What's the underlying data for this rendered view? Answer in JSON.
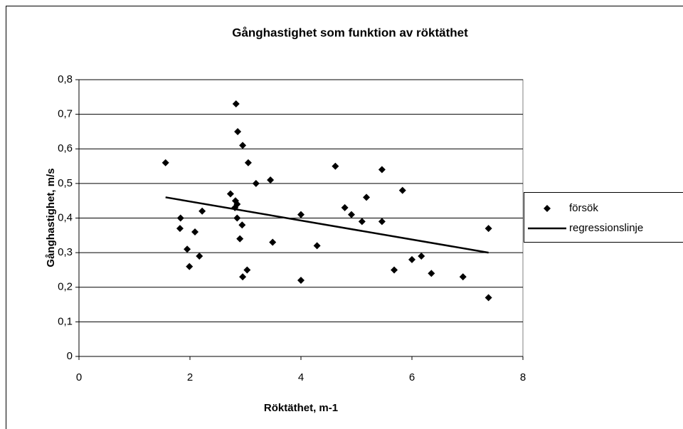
{
  "chart_data": {
    "type": "scatter",
    "title": "Gånghastighet som funktion av röktäthet",
    "x_label": "Röktäthet, m-1",
    "y_label": "Gånghastighet, m/s",
    "xlim": [
      0,
      8
    ],
    "xticks": [
      0,
      2,
      4,
      6,
      8
    ],
    "ylim": [
      0,
      0.8
    ],
    "yticks": [
      0,
      {
        "value": 0.1,
        "label": "0,1"
      },
      {
        "value": 0.2,
        "label": "0,2"
      },
      {
        "value": 0.3,
        "label": "0,3"
      },
      {
        "value": 0.4,
        "label": "0,4"
      },
      {
        "value": 0.5,
        "label": "0,5"
      },
      {
        "value": 0.6,
        "label": "0,6"
      },
      {
        "value": 0.7,
        "label": "0,7"
      },
      {
        "value": 0.8,
        "label": "0,8"
      }
    ],
    "grid": true,
    "legend": "right",
    "series": [
      {
        "name": "försök",
        "type": "scatter",
        "color": "#000000",
        "x": [
          1.56,
          2.83,
          1.83,
          1.82,
          2.09,
          1.95,
          1.99,
          2.17,
          2.22,
          2.73,
          2.82,
          2.85,
          2.81,
          2.85,
          2.9,
          2.94,
          2.95,
          3.03,
          3.49,
          2.86,
          2.95,
          3.05,
          3.19,
          3.45,
          4.0,
          4.0,
          4.29,
          4.62,
          4.79,
          4.91,
          5.1,
          5.18,
          5.46,
          5.46,
          5.83,
          5.68,
          6.0,
          6.17,
          6.35,
          6.92,
          7.38,
          7.38
        ],
        "values": [
          0.56,
          0.73,
          0.4,
          0.37,
          0.36,
          0.31,
          0.26,
          0.29,
          0.42,
          0.47,
          0.45,
          0.44,
          0.43,
          0.4,
          0.34,
          0.38,
          0.23,
          0.25,
          0.33,
          0.65,
          0.61,
          0.56,
          0.5,
          0.51,
          0.41,
          0.22,
          0.32,
          0.55,
          0.43,
          0.41,
          0.39,
          0.46,
          0.54,
          0.39,
          0.48,
          0.25,
          0.28,
          0.29,
          0.24,
          0.23,
          0.37,
          0.17
        ]
      },
      {
        "name": "regressionslinje",
        "type": "line",
        "color": "#000000",
        "x": [
          1.56,
          7.38
        ],
        "values": [
          0.46,
          0.3
        ]
      }
    ]
  }
}
